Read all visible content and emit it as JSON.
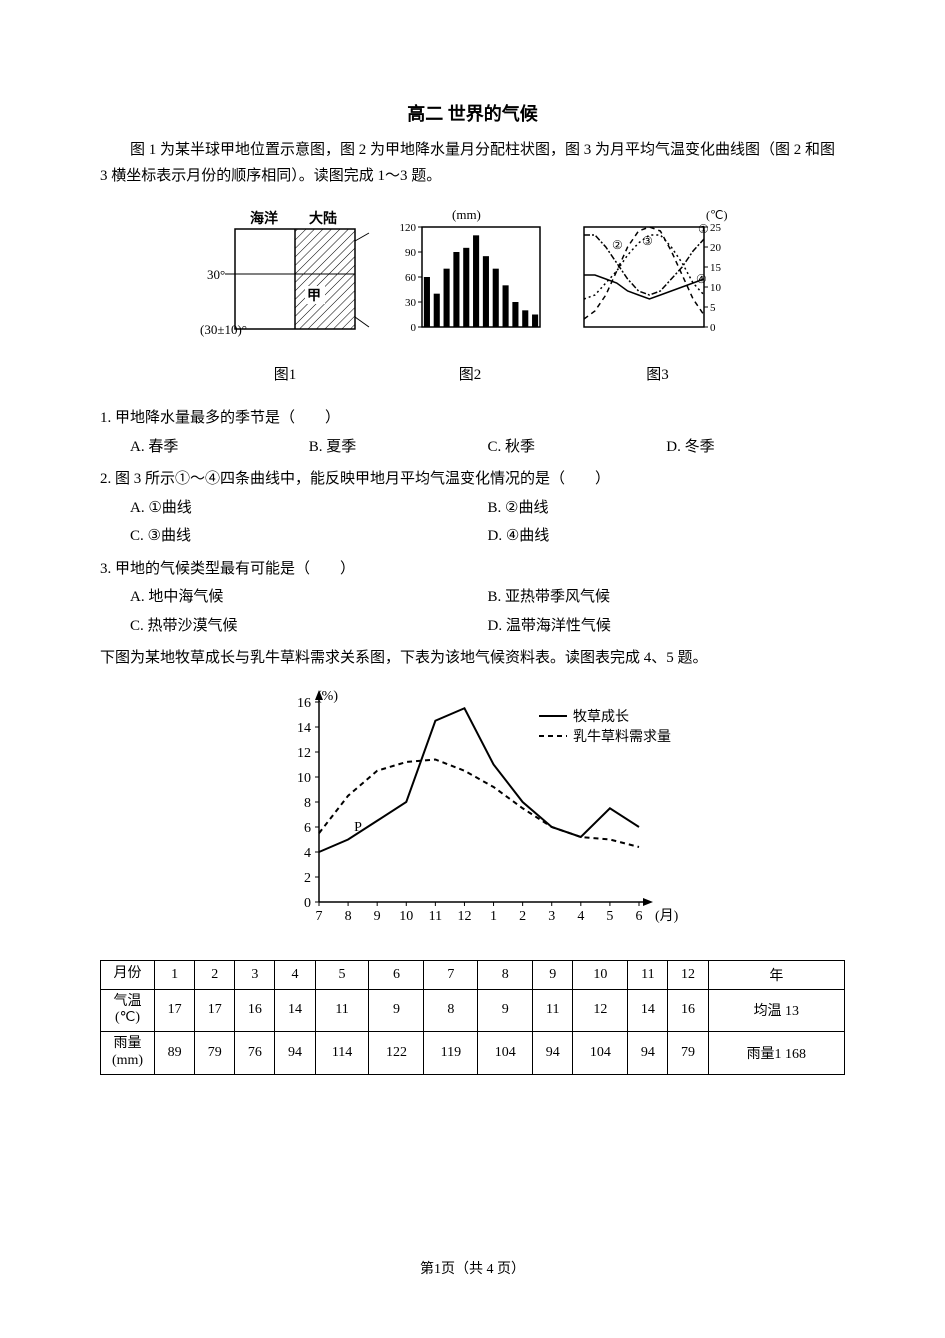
{
  "title": "高二 世界的气候",
  "intro": "图 1 为某半球甲地位置示意图，图 2 为甲地降水量月分配柱状图，图 3 为月平均气温变化曲线图（图 2 和图 3 横坐标表示月份的顺序相同）。读图完成 1～3 题。",
  "fig1": {
    "caption": "图1",
    "labels": {
      "ocean": "海洋",
      "land": "大陆",
      "lat30": "30°",
      "latband": "(30±10)°",
      "jia": "甲"
    },
    "colors": {
      "stroke": "#000000",
      "bg": "#ffffff"
    }
  },
  "fig2": {
    "caption": "图2",
    "type": "bar",
    "unit": "(mm)",
    "values": [
      60,
      40,
      70,
      90,
      95,
      110,
      85,
      70,
      50,
      30,
      20,
      15
    ],
    "ylim": [
      0,
      120
    ],
    "yticks": [
      0,
      30,
      60,
      90,
      120
    ],
    "bar_color": "#000000",
    "bg": "#ffffff",
    "stroke": "#000000"
  },
  "fig3": {
    "caption": "图3",
    "type": "line",
    "unit": "(℃)",
    "ylim": [
      0,
      25
    ],
    "yticks": [
      0,
      5,
      10,
      15,
      20,
      25
    ],
    "series": {
      "s1": {
        "label": "①",
        "dash": "5,4",
        "color": "#000000",
        "values": [
          2,
          4,
          8,
          14,
          20,
          24,
          25,
          24,
          19,
          13,
          7,
          3
        ]
      },
      "s2": {
        "label": "②",
        "dash": "2,3",
        "color": "#000000",
        "values": [
          7,
          8,
          11,
          14,
          18,
          21,
          23,
          23,
          20,
          16,
          11,
          8
        ]
      },
      "s3": {
        "label": "③",
        "dash": "6,2,2,2",
        "color": "#000000",
        "values": [
          23,
          23,
          20,
          16,
          12,
          9,
          8,
          9,
          12,
          15,
          19,
          22
        ]
      },
      "s4": {
        "label": "④",
        "dash": "",
        "color": "#000000",
        "values": [
          13,
          13,
          12,
          11,
          9,
          8,
          7,
          8,
          9,
          10,
          11,
          12
        ]
      }
    },
    "bg": "#ffffff",
    "stroke": "#000000"
  },
  "q1": {
    "stem": "1. 甲地降水量最多的季节是（　　）",
    "opts": {
      "a": "A. 春季",
      "b": "B. 夏季",
      "c": "C. 秋季",
      "d": "D. 冬季"
    }
  },
  "q2": {
    "stem": "2. 图 3 所示①～④四条曲线中，能反映甲地月平均气温变化情况的是（　　）",
    "opts": {
      "a": "A. ①曲线",
      "b": "B. ②曲线",
      "c": "C. ③曲线",
      "d": "D. ④曲线"
    }
  },
  "q3": {
    "stem": "3. 甲地的气候类型最有可能是（　　）",
    "opts": {
      "a": "A. 地中海气候",
      "b": "B. 亚热带季风气候",
      "c": "C. 热带沙漠气候",
      "d": "D. 温带海洋性气候"
    }
  },
  "intro2": "下图为某地牧草成长与乳牛草料需求关系图，下表为该地气候资料表。读图表完成 4、5 题。",
  "chart2": {
    "type": "line",
    "x_label": "(月)",
    "y_unit": "(%)",
    "xlim": [
      7,
      18
    ],
    "x_ticks": [
      "7",
      "8",
      "9",
      "10",
      "11",
      "12",
      "1",
      "2",
      "3",
      "4",
      "5",
      "6"
    ],
    "ylim": [
      0,
      16
    ],
    "yticks": [
      0,
      2,
      4,
      6,
      8,
      10,
      12,
      14,
      16
    ],
    "legend": {
      "grass": "牧草成长",
      "demand": "乳牛草料需求量"
    },
    "p_label": "P",
    "series": {
      "grass": {
        "dash": "",
        "color": "#000000",
        "values": [
          4.0,
          5.0,
          6.5,
          8.0,
          14.5,
          15.5,
          11.0,
          8.0,
          6.0,
          5.2,
          7.5,
          6.0
        ]
      },
      "demand": {
        "dash": "5,4",
        "color": "#000000",
        "values": [
          5.5,
          8.5,
          10.5,
          11.2,
          11.4,
          10.5,
          9.2,
          7.5,
          6.0,
          5.2,
          5.0,
          4.4
        ]
      }
    },
    "bg": "#ffffff",
    "stroke": "#000000",
    "font_size": 14
  },
  "table": {
    "headers": [
      "月份",
      "1",
      "2",
      "3",
      "4",
      "5",
      "6",
      "7",
      "8",
      "9",
      "10",
      "11",
      "12",
      "年"
    ],
    "rows": [
      {
        "head": "气温(℃)",
        "cells": [
          "17",
          "17",
          "16",
          "14",
          "11",
          "9",
          "8",
          "9",
          "11",
          "12",
          "14",
          "16",
          "均温 13"
        ]
      },
      {
        "head": "雨量(mm)",
        "cells": [
          "89",
          "79",
          "76",
          "94",
          "114",
          "122",
          "119",
          "104",
          "94",
          "104",
          "94",
          "79",
          "雨量1 168"
        ]
      }
    ],
    "row_headers": {
      "temp_l1": "气温",
      "temp_l2": "(℃)",
      "rain_l1": "雨量",
      "rain_l2": "(mm)"
    }
  },
  "footer": "第1页（共 4 页）"
}
